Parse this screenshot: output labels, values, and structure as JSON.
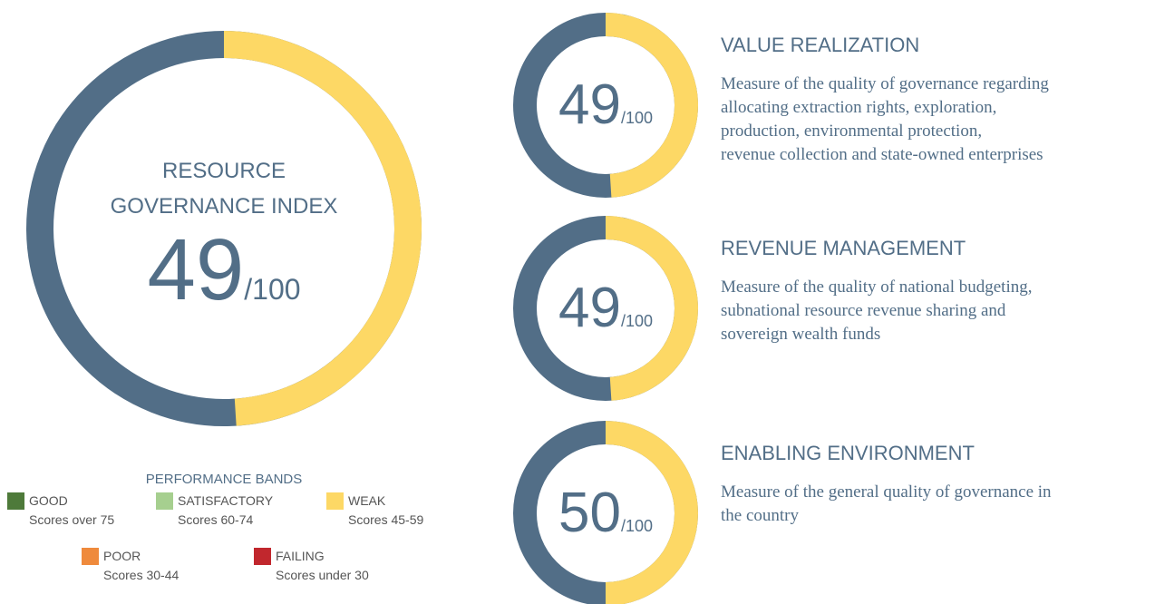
{
  "chart_data": {
    "type": "donut",
    "main": {
      "title_lines": [
        "RESOURCE",
        "GOVERNANCE INDEX"
      ],
      "score": 49,
      "scale": {
        "value": 100,
        "label": "/100"
      }
    },
    "components": [
      {
        "title": "VALUE REALIZATION",
        "score": 49,
        "scale": {
          "value": 100,
          "label": "/100"
        },
        "description": [
          "Measure of the quality of governance regarding",
          "allocating extraction rights, exploration,",
          "production, environmental protection,",
          "revenue collection and state-owned enterprises"
        ]
      },
      {
        "title": "REVENUE MANAGEMENT",
        "score": 49,
        "scale": {
          "value": 100,
          "label": "/100"
        },
        "description": [
          "Measure of the quality of national budgeting,",
          "subnational resource revenue sharing and",
          "sovereign wealth funds"
        ]
      },
      {
        "title": "ENABLING ENVIRONMENT",
        "score": 50,
        "scale": {
          "value": 100,
          "label": "/100"
        },
        "description": [
          "Measure of the general quality of governance in",
          "the country"
        ]
      }
    ],
    "colors": {
      "score": "#fdd865",
      "rest": "#526e87"
    },
    "performance_bands": {
      "title": "PERFORMANCE BANDS",
      "items": [
        {
          "name": "GOOD",
          "range": "Scores over 75",
          "color": "#4e7a3a"
        },
        {
          "name": "SATISFACTORY",
          "range": "Scores 60-74",
          "color": "#a6cf8f"
        },
        {
          "name": "WEAK",
          "range": "Scores 45-59",
          "color": "#fdd865"
        },
        {
          "name": "POOR",
          "range": "Scores 30-44",
          "color": "#ef8a3c"
        },
        {
          "name": "FAILING",
          "range": "Scores under 30",
          "color": "#c1272d"
        }
      ]
    }
  }
}
